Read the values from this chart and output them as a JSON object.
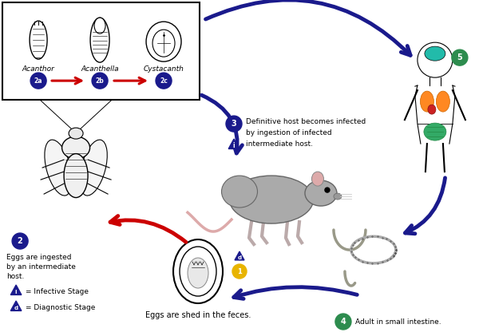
{
  "bg_color": "#ffffff",
  "dark_blue": "#1a1a8c",
  "red": "#cc0000",
  "green": "#2d8c4e",
  "yellow": "#e8b400",
  "stages": {
    "2a_label": "Acanthor",
    "2b_label": "Acanthella",
    "2c_label": "Cystacanth"
  },
  "labels": {
    "step2": "Eggs are ingested\nby an intermediate\nhost.",
    "step3_line1": "Definitive host becomes infected",
    "step3_line2": "by ingestion of infected",
    "step3_line3": "intermediate host.",
    "step4": "Adult in small intestine.",
    "eggs": "Eggs are shed in the feces.",
    "infective": "= Infective Stage",
    "diagnostic": "= Diagnostic Stage"
  }
}
